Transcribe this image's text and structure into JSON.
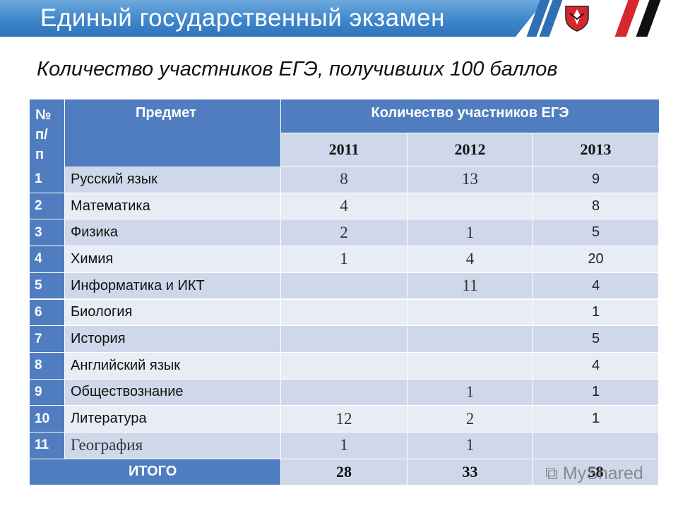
{
  "header": {
    "title": "Единый государственный экзамен"
  },
  "slide": {
    "subtitle": "Количество участников ЕГЭ, получивших 100 баллов"
  },
  "table": {
    "col_num": "№\nп/\nп",
    "col_subject": "Предмет",
    "col_count": "Количество участников ЕГЭ",
    "years": [
      "2011",
      "2012",
      "2013"
    ],
    "rows": [
      {
        "n": "1",
        "subject": "Русский язык",
        "v2011": "8",
        "v2012": "13",
        "v2013": "9"
      },
      {
        "n": "2",
        "subject": "Математика",
        "v2011": "4",
        "v2012": "",
        "v2013": "8"
      },
      {
        "n": "3",
        "subject": "Физика",
        "v2011": "2",
        "v2012": "1",
        "v2013": "5"
      },
      {
        "n": "4",
        "subject": "Химия",
        "v2011": "1",
        "v2012": "4",
        "v2013": "20"
      },
      {
        "n": "5",
        "subject": "Информатика и ИКТ",
        "v2011": "",
        "v2012": "11",
        "v2013": "4"
      },
      {
        "n": "6",
        "subject": "Биология",
        "v2011": "",
        "v2012": "",
        "v2013": "1"
      },
      {
        "n": "7",
        "subject": "История",
        "v2011": "",
        "v2012": "",
        "v2013": "5"
      },
      {
        "n": "8",
        "subject": "Английский язык",
        "v2011": "",
        "v2012": "",
        "v2013": "4"
      },
      {
        "n": "9",
        "subject": "Обществознание",
        "v2011": "",
        "v2012": "1",
        "v2013": "1"
      },
      {
        "n": "10",
        "subject": "Литература",
        "v2011": "12",
        "v2012": "2",
        "v2013": "1"
      },
      {
        "n": "11",
        "subject": "География",
        "v2011": "1",
        "v2012": "1",
        "v2013": ""
      }
    ],
    "total_label": "ИТОГО",
    "totals": [
      "28",
      "33",
      "58"
    ]
  },
  "watermark": "MyShared"
}
